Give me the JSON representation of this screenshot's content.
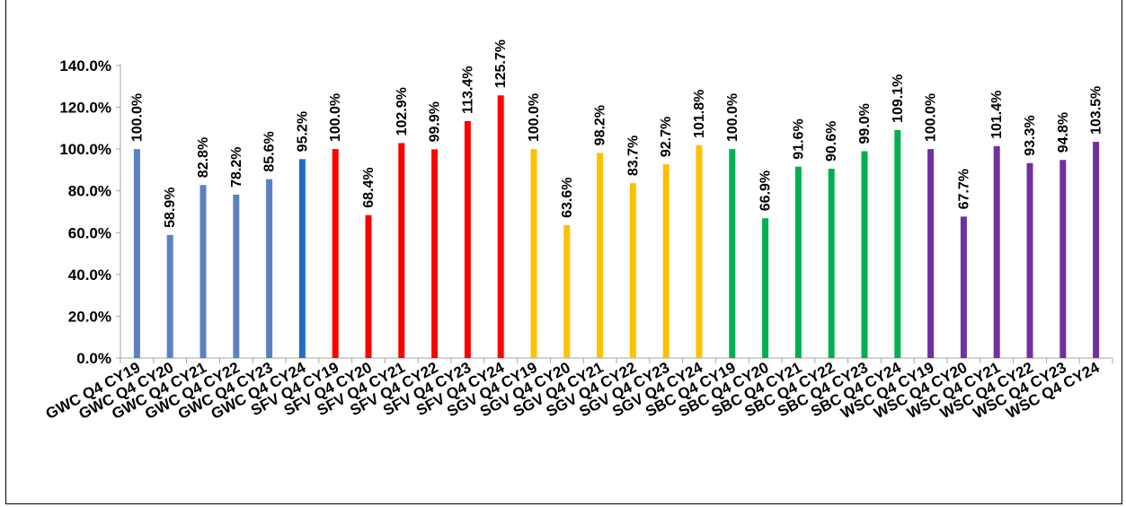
{
  "chart_data": {
    "type": "bar",
    "title": "",
    "xlabel": "",
    "ylabel": "",
    "ylim": [
      0,
      140
    ],
    "y_ticks": [
      "0.0%",
      "20.0%",
      "40.0%",
      "60.0%",
      "80.0%",
      "100.0%",
      "120.0%",
      "140.0%"
    ],
    "grid": false,
    "legend": "none",
    "categories": [
      "GWC Q4 CY19",
      "GWC Q4 CY20",
      "GWC Q4 CY21",
      "GWC Q4 CY22",
      "GWC Q4 CY23",
      "GWC Q4 CY24",
      "SFV Q4 CY19",
      "SFV Q4 CY20",
      "SFV Q4 CY21",
      "SFV Q4 CY22",
      "SFV Q4 CY23",
      "SFV Q4 CY24",
      "SGV Q4 CY19",
      "SGV Q4 CY20",
      "SGV Q4 CY21",
      "SGV Q4 CY22",
      "SGV Q4 CY23",
      "SGV Q4 CY24",
      "SBC Q4 CY19",
      "SBC Q4 CY20",
      "SBC Q4 CY21",
      "SBC Q4 CY22",
      "SBC Q4 CY23",
      "SBC Q4 CY24",
      "WSC Q4 CY19",
      "WSC Q4 CY20",
      "WSC Q4 CY21",
      "WSC Q4 CY22",
      "WSC Q4 CY23",
      "WSC Q4 CY24"
    ],
    "values": [
      100.0,
      58.9,
      82.8,
      78.2,
      85.6,
      95.2,
      100.0,
      68.4,
      102.9,
      99.9,
      113.4,
      125.7,
      100.0,
      63.6,
      98.2,
      83.7,
      92.7,
      101.8,
      100.0,
      66.9,
      91.6,
      90.6,
      99.0,
      109.1,
      100.0,
      67.7,
      101.4,
      93.3,
      94.8,
      103.5
    ],
    "data_labels": [
      "100.0%",
      "58.9%",
      "82.8%",
      "78.2%",
      "85.6%",
      "95.2%",
      "100.0%",
      "68.4%",
      "102.9%",
      "99.9%",
      "113.4%",
      "125.7%",
      "100.0%",
      "63.6%",
      "98.2%",
      "83.7%",
      "92.7%",
      "101.8%",
      "100.0%",
      "66.9%",
      "91.6%",
      "90.6%",
      "99.0%",
      "109.1%",
      "100.0%",
      "67.7%",
      "101.4%",
      "93.3%",
      "94.8%",
      "103.5%"
    ],
    "bar_colors": [
      "#5B82C0",
      "#5B82C0",
      "#5B82C0",
      "#5B82C0",
      "#5B82C0",
      "#1F6FC4",
      "#FF0000",
      "#FF0000",
      "#FF0000",
      "#FF0000",
      "#FF0000",
      "#FF0000",
      "#FFC000",
      "#FFC000",
      "#FFC000",
      "#FFC000",
      "#FFC000",
      "#FFC000",
      "#00B050",
      "#00B050",
      "#00B050",
      "#00B050",
      "#00B050",
      "#00B050",
      "#7030A0",
      "#7030A0",
      "#7030A0",
      "#7030A0",
      "#7030A0",
      "#7030A0"
    ]
  }
}
